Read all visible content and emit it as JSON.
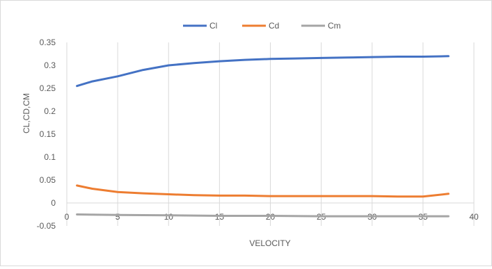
{
  "chart_data": {
    "type": "line",
    "title": "",
    "xlabel": "VELOCITY",
    "ylabel": "CL,CD,CM",
    "xlim": [
      0,
      40
    ],
    "ylim": [
      -0.05,
      0.35
    ],
    "x_ticks": [
      0,
      5,
      10,
      15,
      20,
      25,
      30,
      35,
      40
    ],
    "y_ticks": [
      -0.05,
      0,
      0.05,
      0.1,
      0.15,
      0.2,
      0.25,
      0.3,
      0.35
    ],
    "x_tick_labels": [
      "0",
      "5",
      "10",
      "15",
      "20",
      "25",
      "30",
      "35",
      "40"
    ],
    "y_tick_labels": [
      "-0.05",
      "0",
      "0.05",
      "0.1",
      "0.15",
      "0.2",
      "0.25",
      "0.3",
      "0.35"
    ],
    "grid": "vertical",
    "legend": "top",
    "series": [
      {
        "name": "Cl",
        "color": "#4472c4",
        "points": [
          [
            1,
            0.255
          ],
          [
            2.5,
            0.265
          ],
          [
            5,
            0.276
          ],
          [
            7.5,
            0.29
          ],
          [
            10,
            0.3
          ],
          [
            12.5,
            0.305
          ],
          [
            15,
            0.309
          ],
          [
            17.5,
            0.312
          ],
          [
            20,
            0.314
          ],
          [
            22.5,
            0.315
          ],
          [
            25,
            0.316
          ],
          [
            27.5,
            0.317
          ],
          [
            30,
            0.318
          ],
          [
            32.5,
            0.319
          ],
          [
            35,
            0.319
          ],
          [
            37.5,
            0.32
          ]
        ]
      },
      {
        "name": "Cd",
        "color": "#ed7d31",
        "points": [
          [
            1,
            0.038
          ],
          [
            2.5,
            0.031
          ],
          [
            5,
            0.024
          ],
          [
            7.5,
            0.021
          ],
          [
            10,
            0.019
          ],
          [
            12.5,
            0.017
          ],
          [
            15,
            0.016
          ],
          [
            17.5,
            0.016
          ],
          [
            20,
            0.015
          ],
          [
            22.5,
            0.015
          ],
          [
            25,
            0.015
          ],
          [
            27.5,
            0.015
          ],
          [
            30,
            0.015
          ],
          [
            32.5,
            0.014
          ],
          [
            35,
            0.014
          ],
          [
            37.5,
            0.02
          ]
        ]
      },
      {
        "name": "Cm",
        "color": "#a5a5a5",
        "points": [
          [
            1,
            -0.025
          ],
          [
            5,
            -0.026
          ],
          [
            10,
            -0.027
          ],
          [
            15,
            -0.028
          ],
          [
            20,
            -0.028
          ],
          [
            25,
            -0.029
          ],
          [
            30,
            -0.029
          ],
          [
            35,
            -0.029
          ],
          [
            37.5,
            -0.029
          ]
        ]
      }
    ]
  }
}
